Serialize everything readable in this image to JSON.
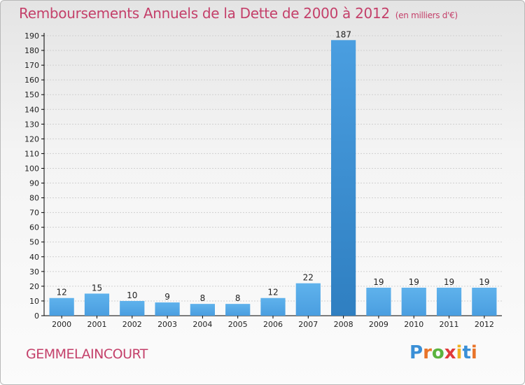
{
  "header": {
    "title": "Remboursements Annuels de la Dette de 2000 à 2012",
    "subtitle": "(en milliers d'€)"
  },
  "footer": {
    "commune": "GEMMELAINCOURT",
    "logo_letters": [
      "P",
      "r",
      "o",
      "x",
      "i",
      "t",
      "i"
    ],
    "logo_colors": [
      "#3a8fd6",
      "#e8742a",
      "#5bb33f",
      "#e03a3a",
      "#f0b21f",
      "#3a8fd6",
      "#e8742a"
    ]
  },
  "colors": {
    "bar": "#4a9ee0",
    "bar_highlight": "#2f7fc1",
    "axis": "#000000",
    "grid": "#d0d0d0",
    "text": "#222222"
  },
  "chart_data": {
    "type": "bar",
    "categories": [
      "2000",
      "2001",
      "2002",
      "2003",
      "2004",
      "2005",
      "2006",
      "2007",
      "2008",
      "2009",
      "2010",
      "2011",
      "2012"
    ],
    "values": [
      12,
      15,
      10,
      9,
      8,
      8,
      12,
      22,
      187,
      19,
      19,
      19,
      19
    ],
    "ylim": [
      0,
      190
    ],
    "yticks": [
      0,
      10,
      20,
      30,
      40,
      50,
      60,
      70,
      80,
      90,
      100,
      110,
      120,
      130,
      140,
      150,
      160,
      170,
      180,
      190
    ],
    "highlight_index": 8,
    "grid": "horizontal"
  }
}
